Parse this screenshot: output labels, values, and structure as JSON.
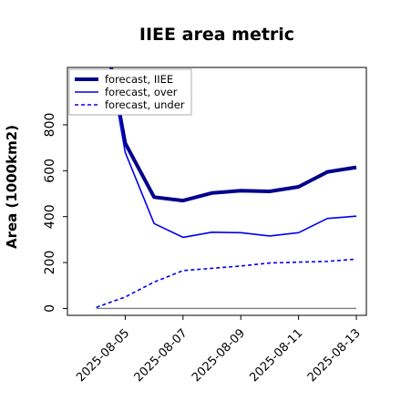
{
  "chart_data": {
    "type": "line",
    "title": "IIEE area metric",
    "xlabel": "",
    "ylabel": "Area (1000km2)",
    "x": [
      "2025-08-04",
      "2025-08-05",
      "2025-08-06",
      "2025-08-07",
      "2025-08-08",
      "2025-08-09",
      "2025-08-10",
      "2025-08-11",
      "2025-08-12",
      "2025-08-13"
    ],
    "x_tick_labels": [
      "2025-08-05",
      "2025-08-07",
      "2025-08-09",
      "2025-08-11",
      "2025-08-13"
    ],
    "x_tick_colors": [
      "#228B22",
      "#000000",
      "#000000",
      "#000000",
      "#000000"
    ],
    "y_ticks": [
      0,
      200,
      400,
      600,
      800
    ],
    "ylim": [
      -30,
      1050
    ],
    "xlim": [
      "2025-08-03",
      "2025-08-13"
    ],
    "grid": false,
    "legend_position": "top-left",
    "series": [
      {
        "name": "forecast, IIEE",
        "color": "#00008b",
        "style": "solid",
        "width": 4,
        "values": [
          1400,
          720,
          485,
          470,
          503,
          513,
          510,
          530,
          595,
          615
        ]
      },
      {
        "name": "forecast, over",
        "color": "#0000ee",
        "style": "solid",
        "width": 1.6,
        "values": [
          1400,
          680,
          370,
          310,
          332,
          330,
          316,
          330,
          392,
          402
        ]
      },
      {
        "name": "forecast, under",
        "color": "#0000ee",
        "style": "dashed",
        "width": 1.6,
        "values": [
          5,
          50,
          115,
          165,
          175,
          185,
          198,
          202,
          205,
          215
        ]
      }
    ],
    "zero_line": {
      "value": 0,
      "color": "#808080"
    }
  }
}
